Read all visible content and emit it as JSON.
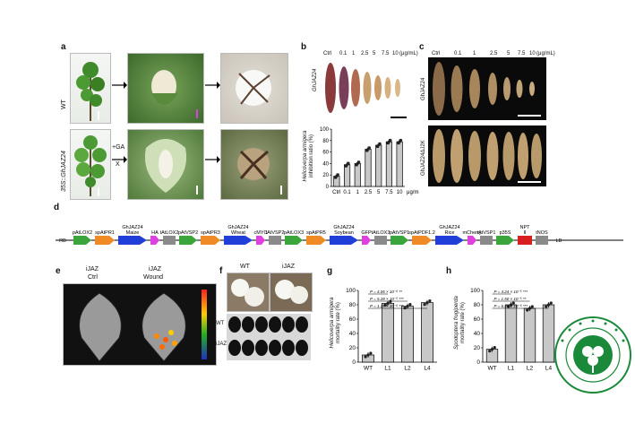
{
  "panels": {
    "a": {
      "label": "a",
      "row1": "WT",
      "row2": "35S::GhJAZ24",
      "treatment_top": "+GA",
      "treatment_bottom": "X"
    },
    "b": {
      "label": "b",
      "ctrl": "Ctrl",
      "conc": [
        "0.1",
        "1",
        "2.5",
        "5",
        "7.5",
        "10"
      ],
      "unit": "(μg/mL)",
      "sample": "GhJAZ24"
    },
    "c": {
      "label": "c",
      "ctrl": "Ctrl",
      "conc": [
        "0.1",
        "1",
        "2.5",
        "5",
        "7.5",
        "10"
      ],
      "unit": "(μg/mL)",
      "row1": "GhJAZ24",
      "row2": "GhJAZ24ΔJ2K"
    },
    "d": {
      "label": "d",
      "segments": [
        {
          "name": "RB",
          "kind": "text"
        },
        {
          "name": "pAtLOX2",
          "kind": "promoter"
        },
        {
          "name": "spAtPR1",
          "kind": "signal"
        },
        {
          "name": "GhJAZ24 Maize",
          "kind": "gene"
        },
        {
          "name": "HA",
          "kind": "tag"
        },
        {
          "name": "tAtLOX2",
          "kind": "term"
        },
        {
          "name": "pAtVSP2",
          "kind": "promoter"
        },
        {
          "name": "spAtPR3",
          "kind": "signal"
        },
        {
          "name": "GhJAZ24 Wheat",
          "kind": "gene"
        },
        {
          "name": "cMYC",
          "kind": "tag"
        },
        {
          "name": "tAtVSP2",
          "kind": "term"
        },
        {
          "name": "pAtLOX3",
          "kind": "promoter"
        },
        {
          "name": "spAtPR5",
          "kind": "signal"
        },
        {
          "name": "GhJAZ24 Soybean",
          "kind": "gene"
        },
        {
          "name": "GFP",
          "kind": "tag"
        },
        {
          "name": "tAtLOX3",
          "kind": "term"
        },
        {
          "name": "pAtVSP1",
          "kind": "promoter"
        },
        {
          "name": "spAtPDF1.2",
          "kind": "signal"
        },
        {
          "name": "GhJAZ24 Rice",
          "kind": "gene"
        },
        {
          "name": "mCherry",
          "kind": "tag"
        },
        {
          "name": "tAtVSP1",
          "kind": "term"
        },
        {
          "name": "p35S",
          "kind": "promoter"
        },
        {
          "name": "NPT II",
          "kind": "npt"
        },
        {
          "name": "tNOS",
          "kind": "term"
        },
        {
          "name": "LB",
          "kind": "text"
        }
      ]
    },
    "e": {
      "label": "e",
      "left_title": "iJAZ",
      "left_sub": "Ctrl",
      "right_title": "iJAZ",
      "right_sub": "Wound"
    },
    "f": {
      "label": "f",
      "col1": "WT",
      "col2": "iJAZ",
      "row1": "WT",
      "row2": "iJAZ"
    },
    "g": {
      "label": "g"
    },
    "h": {
      "label": "h"
    }
  },
  "colors": {
    "promoter": "#3aa53a",
    "signal": "#f08a24",
    "gene": "#1f3fd8",
    "tag": "#e040e0",
    "term": "#8a8a8a",
    "npt": "#d81e1e",
    "bar": "#c8c8c8",
    "point": "#222222"
  },
  "chart_data": [
    {
      "type": "bar",
      "panel": "b",
      "categories": [
        "Ctrl",
        "0.1",
        "1",
        "2.5",
        "5",
        "7.5",
        "10"
      ],
      "values": [
        18,
        38,
        40,
        65,
        72,
        78,
        78
      ],
      "xlabel": "μg/mL",
      "ylabel": "Helicoverpa armigera inhibition ratio (%)",
      "ylim": [
        0,
        100
      ],
      "yticks": [
        0,
        20,
        40,
        60,
        80,
        100
      ],
      "grid": false
    },
    {
      "type": "bar",
      "panel": "g",
      "categories": [
        "WT",
        "L1",
        "L2",
        "L4"
      ],
      "values": [
        10,
        82,
        78,
        83
      ],
      "ylabel": "Helicoverpa armigera mortality rate (%)",
      "ylim": [
        0,
        100
      ],
      "yticks": [
        0,
        20,
        40,
        60,
        80,
        100
      ],
      "annotations": [
        "P = 4.05 × 10⁻⁶ **",
        "P = 5.28 × 10⁻⁵ ***",
        "P = 1.29 × 10⁻⁶ ***"
      ],
      "grid": false
    },
    {
      "type": "bar",
      "panel": "h",
      "categories": [
        "WT",
        "L1",
        "L2",
        "L4"
      ],
      "values": [
        18,
        80,
        75,
        80
      ],
      "ylabel": "Spodoptera frugiperda mortality rate (%)",
      "ylim": [
        0,
        100
      ],
      "yticks": [
        0,
        20,
        40,
        60,
        80,
        100
      ],
      "annotations": [
        "P = 4.24 × 10⁻⁵ ***",
        "P = 1.50 × 10⁻⁵ **",
        "P = 6.48 × 10⁻⁶ ***"
      ],
      "grid": false
    }
  ]
}
